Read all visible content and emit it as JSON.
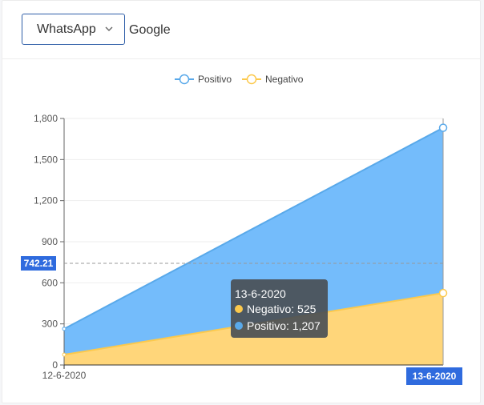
{
  "toolbar": {
    "select_value": "WhatsApp",
    "secondary_label": "Google"
  },
  "colors": {
    "positivo_area": "#74bcfb",
    "positivo_line": "#59a9ea",
    "negativo_area": "#ffd67a",
    "negativo_line": "#fcc94c",
    "tooltip_bg": "#4a4f55",
    "axis_pointer_bg": "#2f6bde"
  },
  "chart_data": {
    "type": "area",
    "title": "",
    "x": [
      "12-6-2020",
      "13-6-2020"
    ],
    "series": [
      {
        "name": "Negativo",
        "values": [
          75,
          525
        ]
      },
      {
        "name": "Positivo",
        "values": [
          264,
          1732
        ]
      }
    ],
    "legend": [
      "Positivo",
      "Negativo"
    ],
    "legend_position": "top-center",
    "ylim": [
      0,
      1800
    ],
    "yticks": [
      "0",
      "300",
      "600",
      "900",
      "1,200",
      "1,500",
      "1,800"
    ],
    "ytick_values": [
      0,
      300,
      600,
      900,
      1200,
      1500,
      1800
    ],
    "grid": true,
    "axis_pointer": {
      "y_label": "742.21",
      "y_value": 742.21,
      "x_label": "13-6-2020"
    },
    "tooltip": {
      "title": "13-6-2020",
      "rows": [
        {
          "series": "Negativo",
          "text": "Negativo: 525"
        },
        {
          "series": "Positivo",
          "text": "Positivo: 1,207"
        }
      ]
    }
  }
}
